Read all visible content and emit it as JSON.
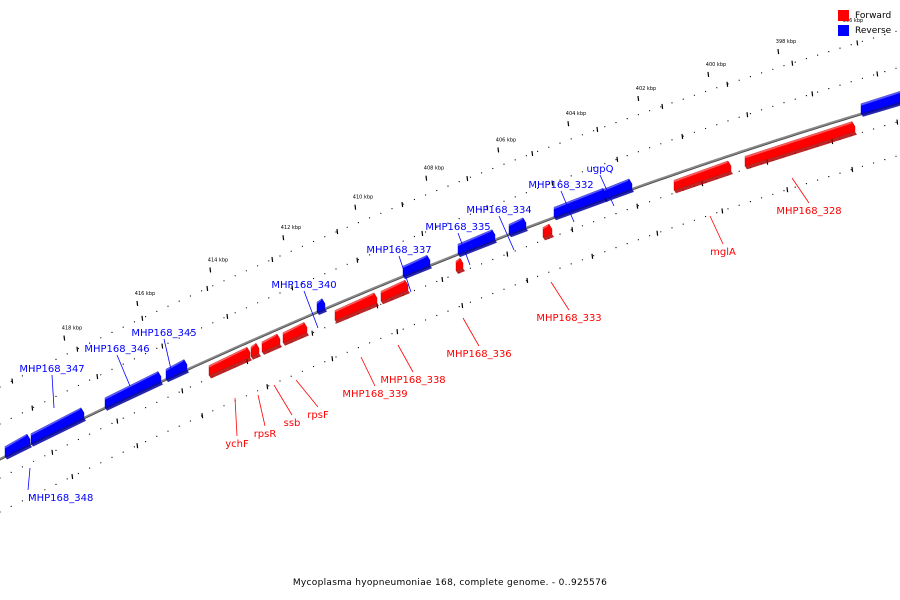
{
  "caption": "Mycoplasma hyopneumoniae 168, complete genome. - 0..925576",
  "legend": [
    {
      "label": "Forward",
      "color": "#ff0000"
    },
    {
      "label": "Reverse",
      "color": "#0000ff"
    }
  ],
  "colors": {
    "forward": "#ff0000",
    "reverse": "#0000ff",
    "backbone": "#888888"
  },
  "ticks": [
    {
      "label": "396 kbp",
      "kbp": 396
    },
    {
      "label": "398 kbp",
      "kbp": 398
    },
    {
      "label": "400 kbp",
      "kbp": 400
    },
    {
      "label": "402 kbp",
      "kbp": 402
    },
    {
      "label": "404 kbp",
      "kbp": 404
    },
    {
      "label": "406 kbp",
      "kbp": 406
    },
    {
      "label": "408 kbp",
      "kbp": 408
    },
    {
      "label": "410 kbp",
      "kbp": 410
    },
    {
      "label": "412 kbp",
      "kbp": 412
    },
    {
      "label": "414 kbp",
      "kbp": 414
    },
    {
      "label": "416 kbp",
      "kbp": 416
    },
    {
      "label": "418 kbp",
      "kbp": 418
    }
  ],
  "genes": [
    {
      "name": "MHP168_348",
      "strand": "reverse"
    },
    {
      "name": "MHP168_347",
      "strand": "reverse"
    },
    {
      "name": "MHP168_346",
      "strand": "reverse"
    },
    {
      "name": "MHP168_345",
      "strand": "reverse"
    },
    {
      "name": "ychF",
      "strand": "forward"
    },
    {
      "name": "rpsR",
      "strand": "forward"
    },
    {
      "name": "ssb",
      "strand": "forward"
    },
    {
      "name": "rpsF",
      "strand": "forward"
    },
    {
      "name": "MHP168_340",
      "strand": "reverse"
    },
    {
      "name": "MHP168_339",
      "strand": "forward"
    },
    {
      "name": "MHP168_338",
      "strand": "forward"
    },
    {
      "name": "MHP168_337",
      "strand": "reverse"
    },
    {
      "name": "MHP168_336",
      "strand": "forward"
    },
    {
      "name": "MHP168_335",
      "strand": "reverse"
    },
    {
      "name": "MHP168_334",
      "strand": "reverse"
    },
    {
      "name": "MHP168_333",
      "strand": "forward"
    },
    {
      "name": "MHP168_332",
      "strand": "reverse"
    },
    {
      "name": "ugpQ",
      "strand": "reverse"
    },
    {
      "name": "mglA",
      "strand": "forward"
    },
    {
      "name": "MHP168_328",
      "strand": "forward"
    },
    {
      "name": "",
      "strand": "reverse"
    }
  ]
}
